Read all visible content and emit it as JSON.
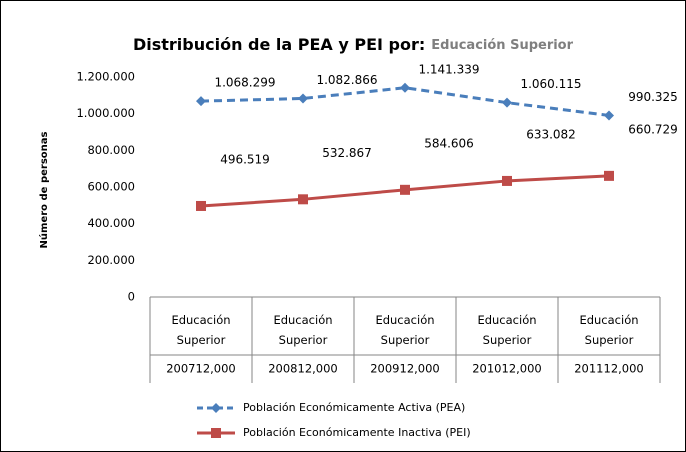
{
  "chart_data": {
    "type": "line",
    "title": "Distribución de la PEA y PEI por:",
    "subtitle": "Educación Superior",
    "y_label": "Número de personas",
    "category_groups": [
      "Educación Superior",
      "Educación Superior",
      "Educación Superior",
      "Educación Superior",
      "Educación Superior"
    ],
    "categories": [
      "200712,000",
      "200812,000",
      "200912,000",
      "201012,000",
      "201112,000"
    ],
    "series": [
      {
        "name": "Población Económicamente Activa (PEA)",
        "color": "#4a7ebb",
        "dashed": true,
        "marker": "diamond",
        "values": [
          1068299,
          1082866,
          1141339,
          1060115,
          990325
        ],
        "value_labels": [
          "1.068.299",
          "1.082.866",
          "1.141.339",
          "1.060.115",
          "990.325"
        ]
      },
      {
        "name": "Población Económicamente Inactiva (PEI)",
        "color": "#be4b48",
        "dashed": false,
        "marker": "square",
        "values": [
          496519,
          532867,
          584606,
          633082,
          660729
        ],
        "value_labels": [
          "496.519",
          "532.867",
          "584.606",
          "633.082",
          "660.729"
        ]
      }
    ],
    "ylim": [
      0,
      1200000
    ],
    "yticks": [
      0,
      {
        "value": 200000,
        "label": "200.000"
      },
      {
        "value": 400000,
        "label": "400.000"
      },
      {
        "value": 600000,
        "label": "600.000"
      },
      {
        "value": 800000,
        "label": "800.000"
      },
      {
        "value": 1000000,
        "label": "1.000.000"
      },
      {
        "value": 1200000,
        "label": "1.200.000"
      }
    ],
    "grid": false,
    "legend": "bottom"
  }
}
